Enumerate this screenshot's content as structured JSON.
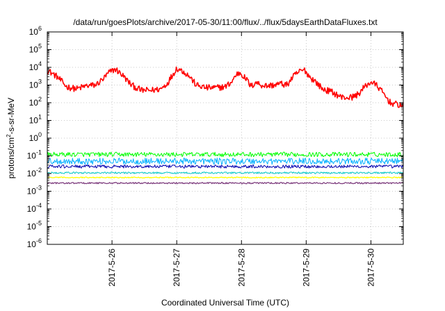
{
  "chart_data": {
    "type": "line",
    "title": "/data/run/goesPlots/archive/2017-05-30/11:00/flux/../flux/5daysEarthDataFluxes.txt",
    "xlabel": "Coordinated Universal Time (UTC)",
    "ylabel": "protons/cm²-s-sr-MeV",
    "ylabel_base": "protons/cm",
    "ylabel_sup": "2",
    "ylabel_rest": "-s-sr-MeV",
    "y_scale": "log",
    "ylim": [
      1e-06,
      1000000.0
    ],
    "xlim": [
      0.0,
      5.5
    ],
    "x_unit": "days from 2017-05-25 00:00 UTC",
    "grid": true,
    "legend": "none",
    "y_ticks": [
      {
        "value": -6,
        "base": "10",
        "exp": "-6"
      },
      {
        "value": -5,
        "base": "10",
        "exp": "-5"
      },
      {
        "value": -4,
        "base": "10",
        "exp": "-4"
      },
      {
        "value": -3,
        "base": "10",
        "exp": "-3"
      },
      {
        "value": -2,
        "base": "10",
        "exp": "-2"
      },
      {
        "value": -1,
        "base": "10",
        "exp": "-1"
      },
      {
        "value": 0,
        "base": "10",
        "exp": "0"
      },
      {
        "value": 1,
        "base": "10",
        "exp": "1"
      },
      {
        "value": 2,
        "base": "10",
        "exp": "2"
      },
      {
        "value": 3,
        "base": "10",
        "exp": "3"
      },
      {
        "value": 4,
        "base": "10",
        "exp": "4"
      },
      {
        "value": 5,
        "base": "10",
        "exp": "5"
      },
      {
        "value": 6,
        "base": "10",
        "exp": "6"
      }
    ],
    "x_ticks": [
      {
        "value": 1,
        "label": "2017-5-26"
      },
      {
        "value": 2,
        "label": "2017-5-27"
      },
      {
        "value": 3,
        "label": "2017-5-28"
      },
      {
        "value": 4,
        "label": "2017-5-29"
      },
      {
        "value": 5,
        "label": "2017-5-30"
      }
    ],
    "series": [
      {
        "color": "#ff0000",
        "noise": 0.18,
        "width": 1.6,
        "x": [
          0.0,
          0.15,
          0.3,
          0.45,
          0.6,
          0.75,
          0.88,
          0.95,
          1.05,
          1.15,
          1.3,
          1.45,
          1.6,
          1.75,
          1.85,
          1.92,
          2.0,
          2.1,
          2.2,
          2.3,
          2.45,
          2.6,
          2.75,
          2.85,
          2.92,
          2.98,
          3.08,
          3.15,
          3.22,
          3.3,
          3.4,
          3.5,
          3.6,
          3.7,
          3.8,
          3.9,
          3.98,
          4.05,
          4.15,
          4.25,
          4.4,
          4.55,
          4.7,
          4.8,
          4.92,
          5.0,
          5.1,
          5.2,
          5.3,
          5.4,
          5.5
        ],
        "y": [
          7000,
          3000,
          800,
          600,
          900,
          1000,
          2500,
          5000,
          8000,
          4000,
          1000,
          500,
          500,
          600,
          1200,
          3000,
          9000,
          6000,
          3000,
          1000,
          700,
          700,
          800,
          1500,
          4000,
          5000,
          2000,
          800,
          1500,
          1000,
          900,
          1000,
          1200,
          1000,
          3000,
          6000,
          7000,
          3000,
          1500,
          600,
          400,
          200,
          200,
          300,
          900,
          1500,
          900,
          300,
          100,
          80,
          70
        ]
      },
      {
        "color": "#00ff00",
        "noise": 0.13,
        "width": 1,
        "x": [
          0.0,
          5.5
        ],
        "y": [
          0.12,
          0.12
        ]
      },
      {
        "color": "#00b0ff",
        "noise": 0.18,
        "width": 1,
        "x": [
          0.0,
          5.5
        ],
        "y": [
          0.05,
          0.05
        ]
      },
      {
        "color": "#0000b0",
        "noise": 0.09,
        "width": 1,
        "x": [
          0.0,
          5.5
        ],
        "y": [
          0.025,
          0.025
        ]
      },
      {
        "color": "#00c8c8",
        "noise": 0.05,
        "width": 1,
        "x": [
          0.0,
          5.5
        ],
        "y": [
          0.011,
          0.011
        ]
      },
      {
        "color": "#ffff00",
        "noise": 0.03,
        "width": 1.3,
        "x": [
          0.0,
          5.5
        ],
        "y": [
          0.006,
          0.006
        ]
      },
      {
        "color": "#804080",
        "noise": 0.04,
        "width": 1.3,
        "x": [
          0.0,
          5.5
        ],
        "y": [
          0.0029,
          0.0029
        ]
      }
    ]
  }
}
